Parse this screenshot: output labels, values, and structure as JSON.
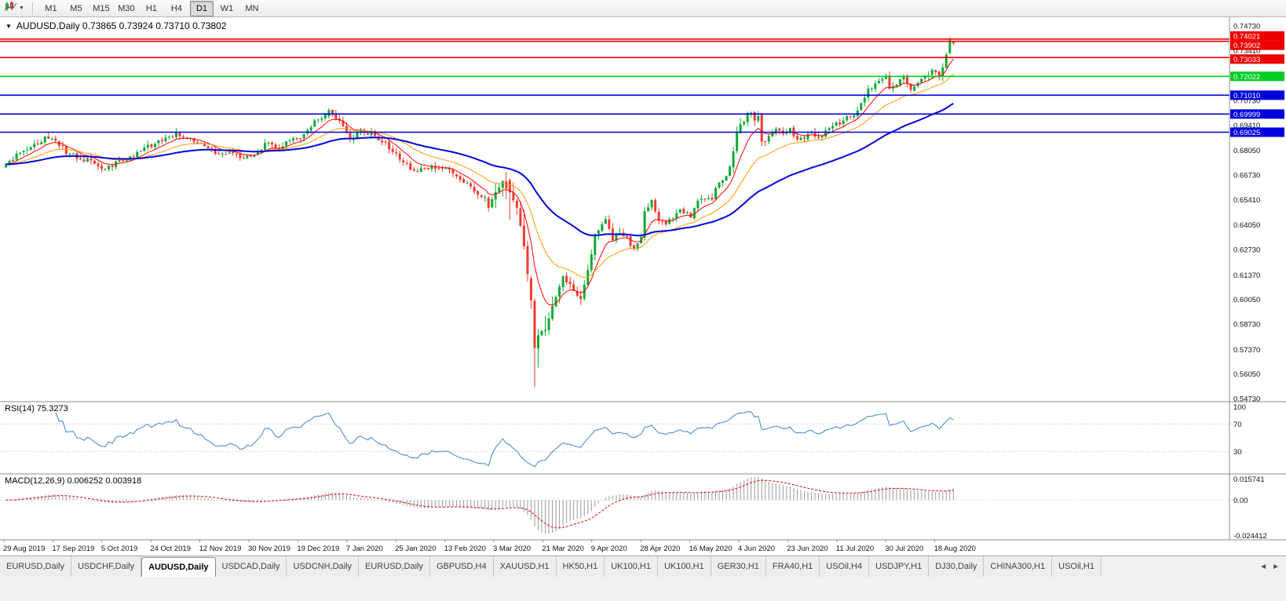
{
  "toolbar": {
    "timeframes": [
      {
        "label": "M1",
        "active": false
      },
      {
        "label": "M5",
        "active": false
      },
      {
        "label": "M15",
        "active": false
      },
      {
        "label": "M30",
        "active": false
      },
      {
        "label": "H1",
        "active": false
      },
      {
        "label": "H4",
        "active": false
      },
      {
        "label": "D1",
        "active": true
      },
      {
        "label": "W1",
        "active": false
      },
      {
        "label": "MN",
        "active": false
      }
    ]
  },
  "chart": {
    "title": "AUDUSD,Daily 0.73865 0.73924 0.73710 0.73802",
    "menu_icon": "▼",
    "symbol": "AUDUSD",
    "period": "Daily"
  },
  "tabs": {
    "scroll_left_icon": "◄",
    "scroll_right_icon": "►",
    "items": [
      {
        "label": "EURUSD,Daily",
        "active": false
      },
      {
        "label": "USDCHF,Daily",
        "active": false
      },
      {
        "label": "AUDUSD,Daily",
        "active": true
      },
      {
        "label": "USDCAD,Daily",
        "active": false
      },
      {
        "label": "USDCNH,Daily",
        "active": false
      },
      {
        "label": "EURUSD,Daily",
        "active": false
      },
      {
        "label": "GBPUSD,H4",
        "active": false
      },
      {
        "label": "XAUUSD,H1",
        "active": false
      },
      {
        "label": "HK50,H1",
        "active": false
      },
      {
        "label": "UK100,H1",
        "active": false
      },
      {
        "label": "UK100,H1",
        "active": false
      },
      {
        "label": "GER30,H1",
        "active": false
      },
      {
        "label": "FRA40,H1",
        "active": false
      },
      {
        "label": "USOil,H4",
        "active": false
      },
      {
        "label": "USDJPY,H1",
        "active": false
      },
      {
        "label": "DJ30,Daily",
        "active": false
      },
      {
        "label": "CHINA300,H1",
        "active": false
      },
      {
        "label": "USOil,H1",
        "active": false
      }
    ]
  },
  "chart_data": {
    "type": "candlestick",
    "symbol": "AUDUSD",
    "timeframe": "Daily",
    "last_ohlc": {
      "open": "0.73865",
      "high": "0.73924",
      "low": "0.73710",
      "close": "0.73802"
    },
    "price_axis": {
      "min": 0.5473,
      "max": 0.7473,
      "labels": [
        "0.74730",
        "0.73410",
        "0.70730",
        "0.69410",
        "0.68050",
        "0.66730",
        "0.65410",
        "0.64050",
        "0.62730",
        "0.61370",
        "0.60050",
        "0.58730",
        "0.57370",
        "0.56050",
        "0.54730"
      ]
    },
    "time_axis": {
      "labels": [
        "29 Aug 2019",
        "17 Sep 2019",
        "5 Oct 2019",
        "24 Oct 2019",
        "12 Nov 2019",
        "30 Nov 2019",
        "19 Dec 2019",
        "7 Jan 2020",
        "25 Jan 2020",
        "13 Feb 2020",
        "3 Mar 2020",
        "21 Mar 2020",
        "9 Apr 2020",
        "28 Apr 2020",
        "16 May 2020",
        "4 Jun 2020",
        "23 Jun 2020",
        "11 Jul 2020",
        "30 Jul 2020",
        "18 Aug 2020"
      ]
    },
    "horizontal_lines": [
      {
        "price": 0.74021,
        "label": "0.74021",
        "color": "#ee0000",
        "badge_dy": -4
      },
      {
        "price": 0.73902,
        "label": "0.73902",
        "color": "#ee0000",
        "badge_dy": 5
      },
      {
        "price": 0.73033,
        "label": "0.73033",
        "color": "#ee0000",
        "badge_dy": 2
      },
      {
        "price": 0.72022,
        "label": "0.72022",
        "color": "#00cc22",
        "badge_dy": 0
      },
      {
        "price": 0.7101,
        "label": "0.71010",
        "color": "#0000dd",
        "badge_dy": 0
      },
      {
        "price": 0.69999,
        "label": "0.69999",
        "color": "#0000dd",
        "badge_dy": 0
      },
      {
        "price": 0.69025,
        "label": "0.69025",
        "color": "#0000dd",
        "badge_dy": 0
      }
    ],
    "candle_colors": {
      "up": "#0caa33",
      "down": "#f03b30"
    },
    "moving_averages": [
      {
        "name": "ma-fast",
        "period": 8,
        "color": "#ff0000",
        "width": 1
      },
      {
        "name": "ma-mid",
        "period": 21,
        "color": "#ff9900",
        "width": 1
      },
      {
        "name": "ma-slow",
        "period": 55,
        "color": "#0008d8",
        "width": 2
      }
    ],
    "rsi": {
      "label": "RSI(14) 75.3273",
      "period": 14,
      "current": "75.3273",
      "levels": [
        70,
        30
      ],
      "scale_labels": [
        {
          "text": "100",
          "value": 100
        },
        {
          "text": "70",
          "value": 70
        },
        {
          "text": "30",
          "value": 30
        }
      ],
      "color": "#4a8fd4"
    },
    "macd": {
      "label": "MACD(12,26,9) 0.006252 0.003918",
      "fast": 12,
      "slow": 26,
      "signal": 9,
      "main_value": "0.006252",
      "signal_value": "0.003918",
      "scale_min": -0.024412,
      "scale_max": 0.015741,
      "scale_labels": [
        {
          "text": "0.015741",
          "value": 0.015741
        },
        {
          "text": "0.00",
          "value": 0
        },
        {
          "text": "-0.024412",
          "value": -0.024412
        }
      ],
      "hist_color": "#9a9a9a",
      "signal_color": "#e00000"
    },
    "candles": {
      "count": 268,
      "base_volatility": 0.0042,
      "close_noise": 0.0026,
      "volatility_zones": [
        {
          "from": 146,
          "to": 152,
          "v": 0.016
        },
        {
          "from": 138,
          "to": 158,
          "v": 0.0105
        },
        {
          "from": 159,
          "to": 173,
          "v": 0.0068
        },
        {
          "from": 205,
          "to": 214,
          "v": 0.0062
        },
        {
          "from": 258,
          "to": 267,
          "v": 0.0052
        }
      ],
      "overrides": {
        "91": [
          0.6988,
          0.7032,
          0.6975,
          0.702
        ],
        "142": [
          0.6645,
          0.6655,
          0.643,
          0.658
        ],
        "148": [
          0.6118,
          0.6135,
          0.5955,
          0.6
        ],
        "149": [
          0.5998,
          0.601,
          0.5535,
          0.5745
        ],
        "150": [
          0.5742,
          0.5845,
          0.564,
          0.5812
        ],
        "213": [
          0.7,
          0.7006,
          0.6828,
          0.6852
        ],
        "266": [
          0.7328,
          0.7413,
          0.732,
          0.7396
        ],
        "267": [
          0.73865,
          0.73924,
          0.7371,
          0.73802
        ]
      },
      "close_waypoints": [
        [
          0,
          0.673
        ],
        [
          3,
          0.6775
        ],
        [
          7,
          0.682
        ],
        [
          11,
          0.6868
        ],
        [
          14,
          0.6855
        ],
        [
          17,
          0.6798
        ],
        [
          20,
          0.677
        ],
        [
          24,
          0.6742
        ],
        [
          27,
          0.67
        ],
        [
          29,
          0.6716
        ],
        [
          32,
          0.6745
        ],
        [
          35,
          0.6772
        ],
        [
          38,
          0.68
        ],
        [
          41,
          0.6835
        ],
        [
          44,
          0.6852
        ],
        [
          48,
          0.6898
        ],
        [
          50,
          0.6885
        ],
        [
          53,
          0.6862
        ],
        [
          56,
          0.682
        ],
        [
          60,
          0.6788
        ],
        [
          64,
          0.6782
        ],
        [
          69,
          0.6762
        ],
        [
          72,
          0.682
        ],
        [
          74,
          0.6848
        ],
        [
          76,
          0.6808
        ],
        [
          79,
          0.6852
        ],
        [
          83,
          0.6878
        ],
        [
          86,
          0.6938
        ],
        [
          89,
          0.6985
        ],
        [
          91,
          0.702
        ],
        [
          93,
          0.6985
        ],
        [
          97,
          0.6868
        ],
        [
          100,
          0.6905
        ],
        [
          103,
          0.6893
        ],
        [
          106,
          0.6852
        ],
        [
          109,
          0.6802
        ],
        [
          113,
          0.6722
        ],
        [
          116,
          0.669
        ],
        [
          119,
          0.6712
        ],
        [
          122,
          0.6716
        ],
        [
          124,
          0.67
        ],
        [
          127,
          0.6678
        ],
        [
          130,
          0.6618
        ],
        [
          133,
          0.6578
        ],
        [
          135,
          0.6545
        ],
        [
          136,
          0.65
        ],
        [
          138,
          0.659
        ],
        [
          140,
          0.6632
        ],
        [
          141,
          0.6605
        ],
        [
          142,
          0.658
        ],
        [
          144,
          0.6495
        ],
        [
          146,
          0.629
        ],
        [
          147,
          0.615
        ],
        [
          148,
          0.6
        ],
        [
          149,
          0.5745
        ],
        [
          150,
          0.5812
        ],
        [
          152,
          0.5842
        ],
        [
          154,
          0.5962
        ],
        [
          156,
          0.6068
        ],
        [
          157,
          0.6122
        ],
        [
          159,
          0.6078
        ],
        [
          162,
          0.5995
        ],
        [
          163,
          0.6085
        ],
        [
          164,
          0.6165
        ],
        [
          165,
          0.6238
        ],
        [
          166,
          0.6342
        ],
        [
          167,
          0.6382
        ],
        [
          169,
          0.6432
        ],
        [
          171,
          0.6332
        ],
        [
          173,
          0.6362
        ],
        [
          175,
          0.633
        ],
        [
          177,
          0.6272
        ],
        [
          179,
          0.633
        ],
        [
          180,
          0.6472
        ],
        [
          182,
          0.6542
        ],
        [
          184,
          0.6432
        ],
        [
          186,
          0.6406
        ],
        [
          188,
          0.6446
        ],
        [
          190,
          0.6482
        ],
        [
          193,
          0.6452
        ],
        [
          195,
          0.6532
        ],
        [
          197,
          0.6552
        ],
        [
          199,
          0.6548
        ],
        [
          201,
          0.6632
        ],
        [
          203,
          0.6662
        ],
        [
          205,
          0.6792
        ],
        [
          206,
          0.6898
        ],
        [
          207,
          0.6942
        ],
        [
          208,
          0.6968
        ],
        [
          209,
          0.6998
        ],
        [
          210,
          0.7012
        ],
        [
          211,
          0.6962
        ],
        [
          212,
          0.7002
        ],
        [
          213,
          0.6852
        ],
        [
          215,
          0.6872
        ],
        [
          217,
          0.6922
        ],
        [
          219,
          0.6882
        ],
        [
          221,
          0.6912
        ],
        [
          223,
          0.6872
        ],
        [
          225,
          0.6862
        ],
        [
          227,
          0.6902
        ],
        [
          229,
          0.6872
        ],
        [
          231,
          0.6918
        ],
        [
          233,
          0.6946
        ],
        [
          235,
          0.6952
        ],
        [
          237,
          0.6978
        ],
        [
          239,
          0.7002
        ],
        [
          241,
          0.7062
        ],
        [
          243,
          0.7132
        ],
        [
          245,
          0.7156
        ],
        [
          247,
          0.7182
        ],
        [
          248,
          0.7192
        ],
        [
          249,
          0.7142
        ],
        [
          251,
          0.7162
        ],
        [
          253,
          0.7192
        ],
        [
          255,
          0.7142
        ],
        [
          257,
          0.7172
        ],
        [
          259,
          0.7202
        ],
        [
          262,
          0.7236
        ],
        [
          263,
          0.7212
        ],
        [
          264,
          0.7252
        ],
        [
          265,
          0.7312
        ],
        [
          266,
          0.7396
        ],
        [
          267,
          0.73802
        ]
      ]
    }
  }
}
